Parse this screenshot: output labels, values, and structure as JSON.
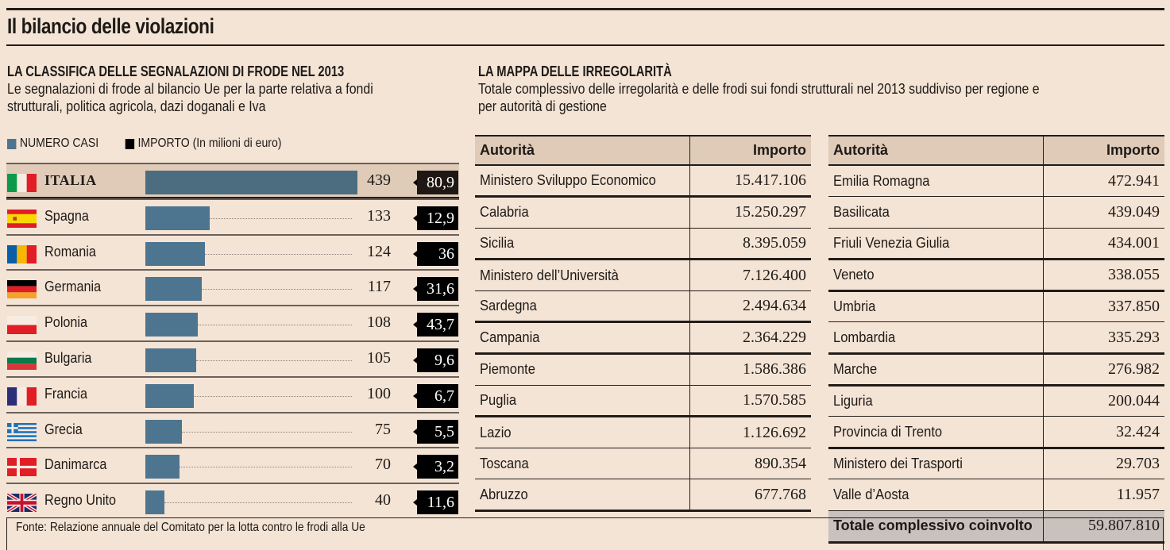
{
  "title": "Il bilancio delle violazioni",
  "left_section": {
    "title": "LA CLASSIFICA DELLE SEGNALAZIONI DI FRODE NEL 2013",
    "subtitle_line1": "Le segnalazioni di frode al bilancio Ue per la parte relativa a fondi",
    "subtitle_line2": "strutturali, politica agricola, dazi doganali e Iva",
    "legend": {
      "cases": "NUMERO CASI",
      "amount": "IMPORTO (In milioni di euro)"
    }
  },
  "colors": {
    "bar": "#4e7590",
    "bar_highlight": "#4c6c80",
    "amount_box": "#000000",
    "background": "#f4e4d5",
    "header_band": "#dfcbb8",
    "total_band": "#c9c2bc"
  },
  "chart_data": {
    "type": "bar",
    "orientation": "horizontal",
    "title": "LA CLASSIFICA DELLE SEGNALAZIONI DI FRODE NEL 2013",
    "categories": [
      "ITALIA",
      "Spagna",
      "Romania",
      "Germania",
      "Polonia",
      "Bulgaria",
      "Francia",
      "Grecia",
      "Danimarca",
      "Regno Unito"
    ],
    "series": [
      {
        "name": "NUMERO CASI",
        "values": [
          439,
          133,
          124,
          117,
          108,
          105,
          100,
          75,
          70,
          40
        ]
      },
      {
        "name": "IMPORTO (In milioni di euro)",
        "values": [
          "80,9",
          "12,9",
          "36",
          "31,6",
          "43,7",
          "9,6",
          "6,7",
          "5,5",
          "3,2",
          "11,6"
        ]
      }
    ],
    "flags": [
      "flag-italy",
      "flag-spain",
      "flag-romania",
      "flag-germany",
      "flag-poland",
      "flag-bulgaria",
      "flag-france",
      "flag-greece",
      "flag-denmark",
      "flag-uk"
    ],
    "xlim": [
      0,
      439
    ],
    "grid": false,
    "legend": "top-left"
  },
  "right_section": {
    "title": "LA MAPPA DELLE IRREGOLARITÀ",
    "subtitle_line1": "Totale complessivo delle irregolarità e delle frodi sui fondi strutturali nel 2013 suddiviso per regione e",
    "subtitle_line2": "per autorità di gestione",
    "table1": {
      "headers": [
        "Autorità",
        "Importo"
      ],
      "rows": [
        [
          "Ministero Sviluppo Economico",
          "15.417.106"
        ],
        [
          "Calabria",
          "15.250.297"
        ],
        [
          "Sicilia",
          "8.395.059"
        ],
        [
          "Ministero dell’Università",
          "7.126.400"
        ],
        [
          "Sardegna",
          "2.494.634"
        ],
        [
          "Campania",
          "2.364.229"
        ],
        [
          "Piemonte",
          "1.586.386"
        ],
        [
          "Puglia",
          "1.570.585"
        ],
        [
          "Lazio",
          "1.126.692"
        ],
        [
          "Toscana",
          "890.354"
        ],
        [
          "Abruzzo",
          "677.768"
        ]
      ]
    },
    "table2": {
      "headers": [
        "Autorità",
        "Importo"
      ],
      "rows": [
        [
          "Emilia Romagna",
          "472.941"
        ],
        [
          "Basilicata",
          "439.049"
        ],
        [
          "Friuli Venezia Giulia",
          "434.001"
        ],
        [
          "Veneto",
          "338.055"
        ],
        [
          "Umbria",
          "337.850"
        ],
        [
          "Lombardia",
          "335.293"
        ],
        [
          "Marche",
          "276.982"
        ],
        [
          "Liguria",
          "200.044"
        ],
        [
          "Provincia di Trento",
          "32.424"
        ],
        [
          "Ministero dei Trasporti",
          "29.703"
        ],
        [
          "Valle d’Aosta",
          "11.957"
        ]
      ],
      "total": [
        "Totale complessivo coinvolto",
        "59.807.810"
      ]
    }
  },
  "footer": "Fonte: Relazione annuale del Comitato per la lotta contro le frodi alla Ue"
}
